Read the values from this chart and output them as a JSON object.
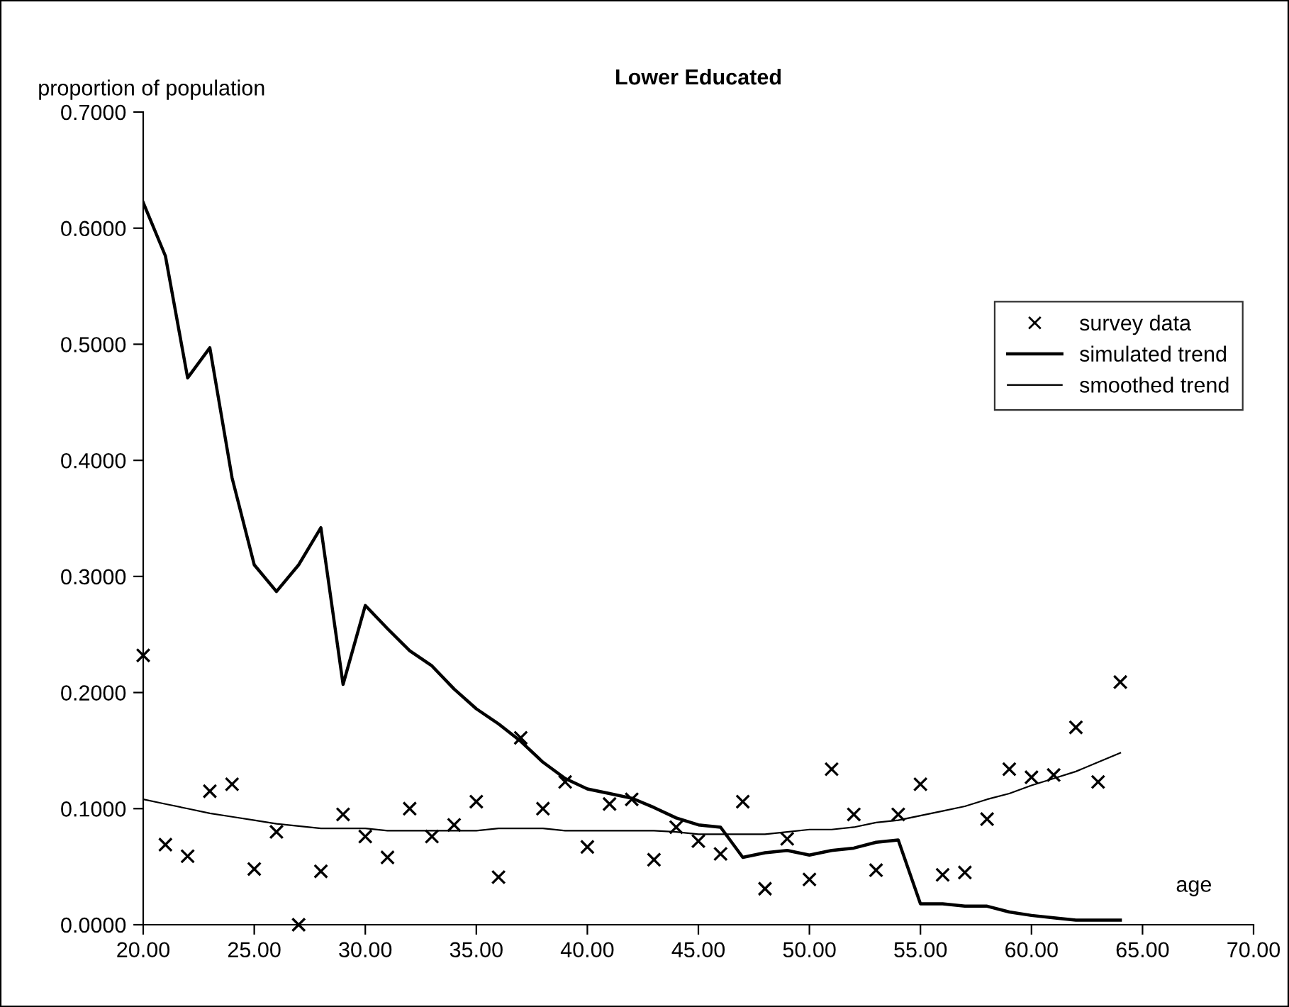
{
  "chart_data": {
    "type": "line",
    "title": "Lower Educated",
    "xlabel": "age",
    "ylabel": "proportion of population",
    "x": [
      20,
      21,
      22,
      23,
      24,
      25,
      26,
      27,
      28,
      29,
      30,
      31,
      32,
      33,
      34,
      35,
      36,
      37,
      38,
      39,
      40,
      41,
      42,
      43,
      44,
      45,
      46,
      47,
      48,
      49,
      50,
      51,
      52,
      53,
      54,
      55,
      56,
      57,
      58,
      59,
      60,
      61,
      62,
      63,
      64
    ],
    "series": [
      {
        "name": "survey data",
        "type": "scatter",
        "marker": "cross",
        "color": "#000000",
        "values": [
          0.232,
          0.069,
          0.059,
          0.115,
          0.121,
          0.048,
          0.08,
          0.0,
          0.046,
          0.095,
          0.076,
          0.058,
          0.1,
          0.076,
          0.086,
          0.106,
          0.041,
          0.161,
          0.1,
          0.123,
          0.067,
          0.104,
          0.108,
          0.056,
          0.084,
          0.072,
          0.061,
          0.106,
          0.031,
          0.074,
          0.039,
          0.134,
          0.095,
          0.047,
          0.095,
          0.121,
          0.043,
          0.045,
          0.091,
          0.134,
          0.127,
          0.129,
          0.17,
          0.123,
          0.209
        ]
      },
      {
        "name": "simulated trend",
        "color": "#000000",
        "values": [
          0.622,
          0.576,
          0.471,
          0.497,
          0.385,
          0.31,
          0.287,
          0.31,
          0.342,
          0.207,
          0.275,
          0.255,
          0.236,
          0.223,
          0.203,
          0.186,
          0.173,
          0.158,
          0.14,
          0.126,
          0.117,
          0.113,
          0.109,
          0.101,
          0.092,
          0.086,
          0.084,
          0.058,
          0.062,
          0.064,
          0.06,
          0.064,
          0.066,
          0.071,
          0.073,
          0.018,
          0.018,
          0.016,
          0.016,
          0.011,
          0.008,
          0.006,
          0.004,
          0.004,
          0.004
        ]
      },
      {
        "name": "smoothed trend",
        "color": "#000000",
        "values": [
          0.108,
          0.104,
          0.1,
          0.096,
          0.093,
          0.09,
          0.087,
          0.085,
          0.083,
          0.083,
          0.083,
          0.081,
          0.081,
          0.081,
          0.081,
          0.081,
          0.083,
          0.083,
          0.083,
          0.081,
          0.081,
          0.081,
          0.081,
          0.081,
          0.08,
          0.078,
          0.078,
          0.078,
          0.078,
          0.08,
          0.082,
          0.082,
          0.084,
          0.088,
          0.09,
          0.094,
          0.098,
          0.102,
          0.108,
          0.113,
          0.12,
          0.126,
          0.132,
          0.14,
          0.148
        ]
      }
    ],
    "xlim": [
      20,
      70
    ],
    "xticks": [
      {
        "value": 20,
        "label": "20.00"
      },
      {
        "value": 25,
        "label": "25.00"
      },
      {
        "value": 30,
        "label": "30.00"
      },
      {
        "value": 35,
        "label": "35.00"
      },
      {
        "value": 40,
        "label": "40.00"
      },
      {
        "value": 45,
        "label": "45.00"
      },
      {
        "value": 50,
        "label": "50.00"
      },
      {
        "value": 55,
        "label": "55.00"
      },
      {
        "value": 60,
        "label": "60.00"
      },
      {
        "value": 65,
        "label": "65.00"
      },
      {
        "value": 70,
        "label": "70.00"
      }
    ],
    "ylim": [
      0,
      0.7
    ],
    "yticks": [
      {
        "value": 0,
        "label": "0.0000"
      },
      {
        "value": 0.1,
        "label": "0.1000"
      },
      {
        "value": 0.2,
        "label": "0.2000"
      },
      {
        "value": 0.3,
        "label": "0.3000"
      },
      {
        "value": 0.4,
        "label": "0.4000"
      },
      {
        "value": 0.5,
        "label": "0.5000"
      },
      {
        "value": 0.6,
        "label": "0.6000"
      },
      {
        "value": 0.7,
        "label": "0.7000"
      }
    ],
    "grid": false,
    "legend": "right"
  }
}
